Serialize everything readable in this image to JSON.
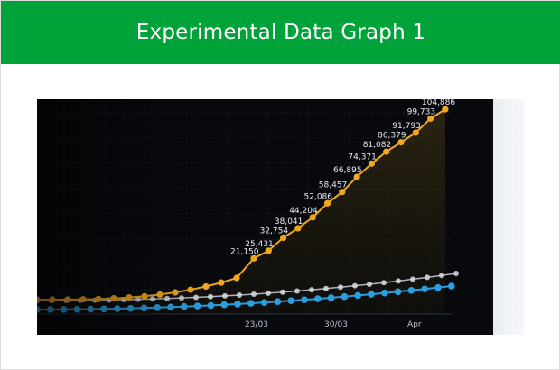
{
  "header": {
    "title": "Experimental Data Graph 1"
  },
  "colors": {
    "header_bg": "#00a23a",
    "orange_series": "#f2a81d",
    "blue_series": "#2a9fe0",
    "white_series": "#d9dde3",
    "background": "#07090d"
  },
  "chart_data": {
    "type": "line",
    "title": "",
    "xlabel": "",
    "ylabel": "",
    "x_ticks": [
      "23/03",
      "30/03",
      "Apr"
    ],
    "grid": true,
    "series": [
      {
        "values": [
          21150,
          25431,
          32754,
          38041,
          44204,
          52086,
          58457,
          66895,
          74371,
          81082,
          86379,
          91793,
          99733,
          104886
        ]
      },
      {
        "values": []
      },
      {
        "values": []
      }
    ]
  }
}
